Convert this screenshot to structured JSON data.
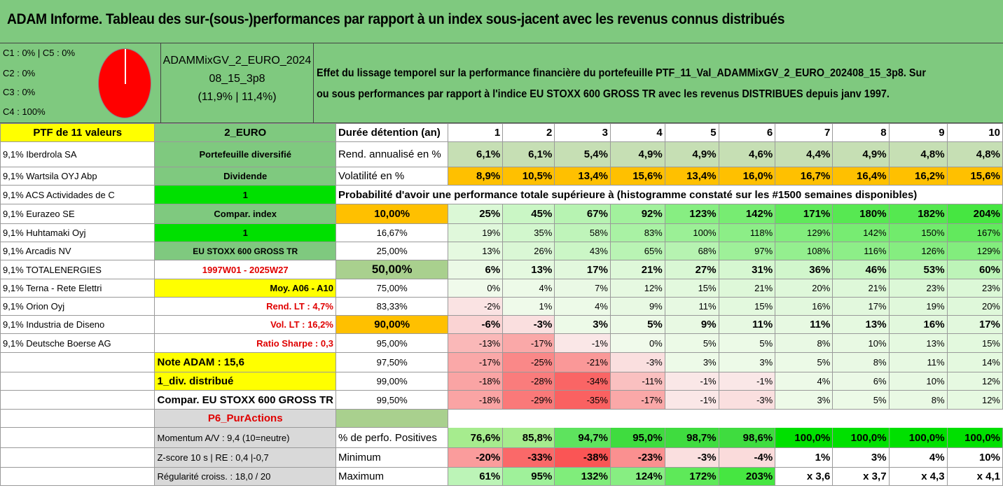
{
  "title": "ADAM Informe. Tableau des sur-(sous-)performances par rapport à un index sous-jacent avec les revenus connus distribués",
  "legend": [
    "C1 : 0% | C5 : 0%",
    "C2 : 0%",
    "C3 : 0%",
    "C4 : 100%"
  ],
  "pie_color": "#ff0000",
  "portfolio_name": "ADAMMixGV_2_EURO_202408_15_3p8",
  "portfolio_perf": "(11,9% | 11,4%)",
  "effet_line1": "Effet du lissage temporel sur la performance financière du portefeuille PTF_11_Val_ADAMMixGV_2_EURO_202408_15_3p8. Sur",
  "effet_line2": "ou sous performances par rapport à l'indice EU STOXX 600 GROSS TR avec les revenus DISTRIBUES depuis janv 1997.",
  "rows": [
    {
      "a": "PTF de 11 valeurs",
      "b": "2_EURO",
      "c": "Durée détention (an)",
      "v": [
        "1",
        "2",
        "3",
        "4",
        "5",
        "6",
        "7",
        "8",
        "9",
        "10"
      ]
    },
    {
      "a": "9,1% Iberdrola SA",
      "b": "Portefeuille diversifié",
      "c": "Rend. annualisé en %",
      "v": [
        "6,1%",
        "6,1%",
        "5,4%",
        "4,9%",
        "4,9%",
        "4,6%",
        "4,4%",
        "4,9%",
        "4,8%",
        "4,8%"
      ]
    },
    {
      "a": "9,1% Wartsila OYJ Abp",
      "b": "Dividende",
      "c": "Volatilité en %",
      "v": [
        "8,9%",
        "10,5%",
        "13,4%",
        "15,6%",
        "13,4%",
        "16,0%",
        "16,7%",
        "16,4%",
        "16,2%",
        "15,6%"
      ]
    },
    {
      "a": "9,1% ACS Actividades de C",
      "b": "1",
      "c": "Probabilité d'avoir une performance totale supérieure à (histogramme constaté sur les #1500 semaines disponibles)",
      "v": []
    },
    {
      "a": "9,1% Eurazeo SE",
      "b": "Compar. index",
      "c": "10,00%",
      "v": [
        "25%",
        "45%",
        "67%",
        "92%",
        "123%",
        "142%",
        "171%",
        "180%",
        "182%",
        "204%"
      ]
    },
    {
      "a": "9,1% Huhtamaki Oyj",
      "b": "1",
      "c": "16,67%",
      "v": [
        "19%",
        "35%",
        "58%",
        "83%",
        "100%",
        "118%",
        "129%",
        "142%",
        "150%",
        "167%"
      ]
    },
    {
      "a": "9,1% Arcadis NV",
      "b": "EU STOXX 600 GROSS TR",
      "c": "25,00%",
      "v": [
        "13%",
        "26%",
        "43%",
        "65%",
        "68%",
        "97%",
        "108%",
        "116%",
        "126%",
        "129%"
      ]
    },
    {
      "a": "9,1% TOTALENERGIES",
      "b": "1997W01 - 2025W27",
      "c": "50,00%",
      "v": [
        "6%",
        "13%",
        "17%",
        "21%",
        "27%",
        "31%",
        "36%",
        "46%",
        "53%",
        "60%"
      ]
    },
    {
      "a": "9,1% Terna - Rete Elettri",
      "b": "Moy. A06 - A10",
      "c": "75,00%",
      "v": [
        "0%",
        "4%",
        "7%",
        "12%",
        "15%",
        "21%",
        "20%",
        "21%",
        "23%",
        "23%"
      ]
    },
    {
      "a": "9,1% Orion Oyj",
      "b": "Rend. LT : 4,7%",
      "c": "83,33%",
      "v": [
        "-2%",
        "1%",
        "4%",
        "9%",
        "11%",
        "15%",
        "16%",
        "17%",
        "19%",
        "20%"
      ]
    },
    {
      "a": "9,1% Industria de Diseno",
      "b": "Vol. LT : 16,2%",
      "c": "90,00%",
      "v": [
        "-6%",
        "-3%",
        "3%",
        "5%",
        "9%",
        "11%",
        "11%",
        "13%",
        "16%",
        "17%"
      ]
    },
    {
      "a": "9,1% Deutsche Boerse AG",
      "b": "Ratio Sharpe : 0,3",
      "c": "95,00%",
      "v": [
        "-13%",
        "-17%",
        "-1%",
        "0%",
        "5%",
        "5%",
        "8%",
        "10%",
        "13%",
        "15%"
      ]
    },
    {
      "a": "",
      "b": "Note ADAM : 15,6",
      "c": "97,50%",
      "v": [
        "-17%",
        "-25%",
        "-21%",
        "-3%",
        "3%",
        "3%",
        "5%",
        "8%",
        "11%",
        "14%"
      ]
    },
    {
      "a": "",
      "b": "1_div. distribué",
      "c": "99,00%",
      "v": [
        "-18%",
        "-28%",
        "-34%",
        "-11%",
        "-1%",
        "-1%",
        "4%",
        "6%",
        "10%",
        "12%"
      ]
    },
    {
      "a": "",
      "b": "Compar. EU STOXX 600 GROSS TR",
      "c": "99,50%",
      "v": [
        "-18%",
        "-29%",
        "-35%",
        "-17%",
        "-1%",
        "-3%",
        "3%",
        "5%",
        "8%",
        "12%"
      ]
    },
    {
      "a": "",
      "b": "P6_PurActions",
      "c": "",
      "v": []
    },
    {
      "a": "",
      "b": "Momentum A/V : 9,4 (10=neutre)",
      "c": "% de perfo. Positives",
      "v": [
        "76,6%",
        "85,8%",
        "94,7%",
        "95,0%",
        "98,7%",
        "98,6%",
        "100,0%",
        "100,0%",
        "100,0%",
        "100,0%"
      ]
    },
    {
      "a": "",
      "b": "Z-score 10 s | RE : 0,4 |-0,7",
      "c": "Minimum",
      "v": [
        "-20%",
        "-33%",
        "-38%",
        "-23%",
        "-3%",
        "-4%",
        "1%",
        "3%",
        "4%",
        "10%"
      ]
    },
    {
      "a": "",
      "b": "Régularité croiss. : 18,0 / 20",
      "c": "Maximum",
      "v": [
        "61%",
        "95%",
        "132%",
        "124%",
        "172%",
        "203%",
        "x 3,6",
        "x 3,7",
        "x 4,3",
        "x 4,1"
      ]
    }
  ]
}
